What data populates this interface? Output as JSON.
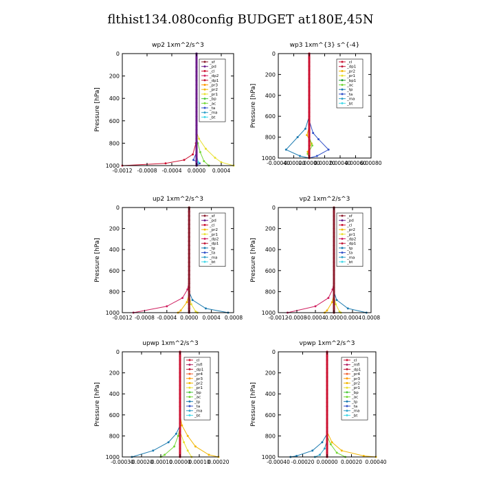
{
  "title": "flthist134.080config  BUDGET at180E,45N",
  "colors": {
    "_sf": "#8b1a2b",
    "_pd": "#6a1a8a",
    "_cl": "#cc1030",
    "_dp2": "#d02060",
    "_dp1": "#c01838",
    "_pr3": "#ff9a00",
    "_pr2": "#f2b600",
    "_pr1": "#e8e030",
    "_bp": "#4cc83a",
    "_bp1": "#1e9c30",
    "_ac": "#74d838",
    "_tp": "#1a7ab0",
    "_ta": "#3050c8",
    "_ma": "#30a0c8",
    "_bt": "#40d8e8",
    "_mfl": "#b02060",
    "_pr4": "#f06030"
  },
  "chart_data": [
    {
      "type": "line",
      "title": "wp2   1xm^2/s^3",
      "ylabel": "Pressure [hPa]",
      "xlim": [
        -0.0012,
        0.0006
      ],
      "ylim": [
        1000,
        0
      ],
      "xticks": [
        "-0.0012",
        "-0.0008",
        "-0.0004",
        "0.0000",
        "0.0004"
      ],
      "xtick_values": [
        -0.0012,
        -0.0008,
        -0.0004,
        0.0,
        0.0004
      ],
      "yticks": [
        0,
        200,
        400,
        600,
        800,
        1000
      ],
      "legend": [
        "_sf",
        "_pd",
        "_cl",
        "_dp2",
        "_dp1",
        "_pr3",
        "_pr2",
        "_pr1",
        "_bp",
        "_ac",
        "_ta",
        "_ma",
        "_bt"
      ],
      "legend_position": "top-right",
      "series": [
        {
          "name": "_cl",
          "points": [
            [
              0,
              0
            ],
            [
              0,
              600
            ],
            [
              -1e-05,
              800
            ],
            [
              -6e-05,
              900
            ],
            [
              -0.0002,
              950
            ],
            [
              -0.0005,
              980
            ],
            [
              -0.0012,
              1000
            ]
          ]
        },
        {
          "name": "_pr1",
          "points": [
            [
              0,
              0
            ],
            [
              0,
              700
            ],
            [
              4e-05,
              760
            ],
            [
              0.00015,
              850
            ],
            [
              0.0003,
              930
            ],
            [
              0.0004,
              970
            ],
            [
              0.0006,
              1000
            ]
          ]
        },
        {
          "name": "_ac",
          "points": [
            [
              0,
              0
            ],
            [
              0,
              740
            ],
            [
              2e-05,
              800
            ],
            [
              6e-05,
              880
            ],
            [
              0.00012,
              960
            ],
            [
              0.0002,
              1000
            ]
          ]
        },
        {
          "name": "_ta",
          "points": [
            [
              0,
              0
            ],
            [
              0,
              880
            ],
            [
              -5e-05,
              950
            ],
            [
              5e-05,
              980
            ],
            [
              0,
              1000
            ]
          ]
        },
        {
          "name": "_bt",
          "points": [
            [
              0,
              0
            ],
            [
              0,
              900
            ],
            [
              3e-05,
              970
            ],
            [
              0,
              1000
            ]
          ]
        },
        {
          "name": "_pd",
          "points": [
            [
              0,
              0
            ],
            [
              0,
              1000
            ]
          ]
        }
      ]
    },
    {
      "type": "line",
      "title": "wp3   1xm^{3} s^{-4}",
      "ylabel": "Pressure [hPa]",
      "xlim": [
        -0.0004,
        0.0008
      ],
      "ylim": [
        1000,
        0
      ],
      "xticks": [
        "-0.00040",
        "-0.00020",
        "0.00000",
        "0.00020",
        "0.00040",
        "0.00060",
        "0.00080"
      ],
      "xtick_values": [
        -0.0004,
        -0.0002,
        0.0,
        0.0002,
        0.0004,
        0.0006,
        0.0008
      ],
      "yticks": [
        0,
        200,
        400,
        600,
        800,
        1000
      ],
      "legend": [
        "_cl",
        "_dp1",
        "_pr2",
        "_pr1",
        "_bp1",
        "_ac",
        "_tp",
        "_ta",
        "_ma",
        "_bt"
      ],
      "legend_position": "top-right",
      "series": [
        {
          "name": "_tp",
          "points": [
            [
              0,
              0
            ],
            [
              0,
              600
            ],
            [
              -5e-05,
              720
            ],
            [
              -0.00015,
              800
            ],
            [
              -0.0003,
              920
            ],
            [
              -0.00012,
              980
            ],
            [
              0,
              1000
            ]
          ]
        },
        {
          "name": "_ta",
          "points": [
            [
              0,
              0
            ],
            [
              0,
              640
            ],
            [
              5e-05,
              760
            ],
            [
              0.00012,
              820
            ],
            [
              0.00025,
              920
            ],
            [
              0.0001,
              980
            ],
            [
              0,
              1000
            ]
          ]
        },
        {
          "name": "_pr2",
          "points": [
            [
              0,
              0
            ],
            [
              0,
              700
            ],
            [
              -3e-05,
              780
            ],
            [
              3e-05,
              860
            ],
            [
              -2e-05,
              940
            ],
            [
              0,
              1000
            ]
          ]
        },
        {
          "name": "_ac",
          "points": [
            [
              0,
              0
            ],
            [
              0,
              800
            ],
            [
              4e-05,
              880
            ],
            [
              -2e-05,
              960
            ],
            [
              0,
              1000
            ]
          ]
        },
        {
          "name": "_cl",
          "points": [
            [
              0,
              0
            ],
            [
              0,
              1000
            ]
          ]
        }
      ]
    },
    {
      "type": "line",
      "title": "up2   1xm^2/s^3",
      "ylabel": "Pressure [hPa]",
      "xlim": [
        -0.0012,
        0.0008
      ],
      "ylim": [
        1000,
        0
      ],
      "xticks": [
        "-0.0012",
        "-0.0008",
        "-0.0004",
        "0.0000",
        "0.0004",
        "0.0008"
      ],
      "xtick_values": [
        -0.0012,
        -0.0008,
        -0.0004,
        0.0,
        0.0004,
        0.0008
      ],
      "yticks": [
        0,
        200,
        400,
        600,
        800,
        1000
      ],
      "legend": [
        "_sf",
        "_pd",
        "_cl",
        "_pr2",
        "_pr1",
        "_dp2",
        "_dp1",
        "_tp",
        "_ta",
        "_ma",
        "_bt"
      ],
      "legend_position": "top-right",
      "series": [
        {
          "name": "_dp2",
          "points": [
            [
              0,
              0
            ],
            [
              0,
              700
            ],
            [
              -3e-05,
              780
            ],
            [
              -0.00012,
              860
            ],
            [
              -0.0004,
              940
            ],
            [
              -0.001,
              1000
            ]
          ]
        },
        {
          "name": "_tp",
          "points": [
            [
              0,
              0
            ],
            [
              0,
              800
            ],
            [
              6e-05,
              880
            ],
            [
              0.0003,
              960
            ],
            [
              0.0007,
              1000
            ]
          ]
        },
        {
          "name": "_pr2",
          "points": [
            [
              0,
              0
            ],
            [
              0,
              820
            ],
            [
              -4e-05,
              900
            ],
            [
              -0.00015,
              980
            ],
            [
              -0.0002,
              1000
            ]
          ]
        },
        {
          "name": "_pr1",
          "points": [
            [
              0,
              0
            ],
            [
              0,
              840
            ],
            [
              4e-05,
              920
            ],
            [
              0.00012,
              990
            ],
            [
              0.00015,
              1000
            ]
          ]
        },
        {
          "name": "_sf",
          "points": [
            [
              0,
              0
            ],
            [
              0,
              1000
            ]
          ]
        }
      ]
    },
    {
      "type": "line",
      "title": "vp2   1xm^2/s^3",
      "ylabel": "Pressure [hPa]",
      "xlim": [
        -0.0012,
        0.0008
      ],
      "ylim": [
        1000,
        0
      ],
      "xticks": [
        "-0.0012",
        "-0.0008",
        "-0.0004",
        "0.0000",
        "0.0004",
        "0.0008"
      ],
      "xtick_values": [
        -0.0012,
        -0.0008,
        -0.0004,
        0.0,
        0.0004,
        0.0008
      ],
      "yticks": [
        0,
        200,
        400,
        600,
        800,
        1000
      ],
      "legend": [
        "_sf",
        "_pd",
        "_cl",
        "_pr2",
        "_pr1",
        "_dp2",
        "_dp1",
        "_tp",
        "_ta",
        "_ma",
        "_bt"
      ],
      "legend_position": "top-right",
      "series": [
        {
          "name": "_dp2",
          "points": [
            [
              0,
              0
            ],
            [
              0,
              700
            ],
            [
              -3e-05,
              780
            ],
            [
              -0.00012,
              860
            ],
            [
              -0.0004,
              940
            ],
            [
              -0.001,
              1000
            ]
          ]
        },
        {
          "name": "_tp",
          "points": [
            [
              0,
              0
            ],
            [
              0,
              800
            ],
            [
              6e-05,
              880
            ],
            [
              0.0003,
              960
            ],
            [
              0.0007,
              1000
            ]
          ]
        },
        {
          "name": "_pr2",
          "points": [
            [
              0,
              0
            ],
            [
              0,
              820
            ],
            [
              -4e-05,
              900
            ],
            [
              -0.00015,
              980
            ],
            [
              -0.0002,
              1000
            ]
          ]
        },
        {
          "name": "_pr1",
          "points": [
            [
              0,
              0
            ],
            [
              0,
              840
            ],
            [
              4e-05,
              920
            ],
            [
              0.00012,
              990
            ],
            [
              0.00015,
              1000
            ]
          ]
        },
        {
          "name": "_sf",
          "points": [
            [
              0,
              0
            ],
            [
              0,
              1000
            ]
          ]
        }
      ]
    },
    {
      "type": "line",
      "title": "upwp   1xm^2/s^3",
      "ylabel": "Pressure [hPa]",
      "xlim": [
        -0.0003,
        0.0002
      ],
      "ylim": [
        1000,
        0
      ],
      "xticks": [
        "-0.00030",
        "-0.00020",
        "-0.00010",
        "0.00000",
        "0.00010",
        "0.00020"
      ],
      "xtick_values": [
        -0.0003,
        -0.0002,
        -0.0001,
        0.0,
        0.0001,
        0.0002
      ],
      "yticks": [
        0,
        200,
        400,
        600,
        800,
        1000
      ],
      "legend": [
        "_cl",
        "_mfl",
        "_dp1",
        "_pr4",
        "_pr3",
        "_pr2",
        "_pr1",
        "_bp",
        "_ac",
        "_tp",
        "_ta",
        "_ma",
        "_bt"
      ],
      "legend_position": "top-right",
      "series": [
        {
          "name": "_pr2",
          "points": [
            [
              0,
              0
            ],
            [
              0,
              600
            ],
            [
              1e-05,
              700
            ],
            [
              4e-05,
              800
            ],
            [
              8e-05,
              900
            ],
            [
              0.00015,
              980
            ],
            [
              0.0002,
              1000
            ]
          ]
        },
        {
          "name": "_tp",
          "points": [
            [
              0,
              0
            ],
            [
              0,
              700
            ],
            [
              -2e-05,
              780
            ],
            [
              -6e-05,
              860
            ],
            [
              -0.00014,
              940
            ],
            [
              -0.00025,
              1000
            ]
          ]
        },
        {
          "name": "_ac",
          "points": [
            [
              0,
              0
            ],
            [
              0,
              720
            ],
            [
              -1e-05,
              800
            ],
            [
              -3e-05,
              900
            ],
            [
              -8e-05,
              980
            ],
            [
              -0.0001,
              1000
            ]
          ]
        },
        {
          "name": "_pr1",
          "points": [
            [
              0,
              0
            ],
            [
              0,
              760
            ],
            [
              2e-05,
              860
            ],
            [
              4e-05,
              940
            ],
            [
              6e-05,
              1000
            ]
          ]
        },
        {
          "name": "_cl",
          "points": [
            [
              0,
              0
            ],
            [
              0,
              1000
            ]
          ]
        }
      ]
    },
    {
      "type": "line",
      "title": "vpwp   1xm^2/s^3",
      "ylabel": "Pressure [hPa]",
      "xlim": [
        -0.0004,
        0.0004
      ],
      "ylim": [
        1000,
        0
      ],
      "xticks": [
        "-0.00040",
        "-0.00020",
        "0.00000",
        "0.00020",
        "0.00040"
      ],
      "xtick_values": [
        -0.0004,
        -0.0002,
        0.0,
        0.0002,
        0.0004
      ],
      "yticks": [
        0,
        200,
        400,
        600,
        800,
        1000
      ],
      "legend": [
        "_cl",
        "_mfl",
        "_dp1",
        "_pr4",
        "_pr3",
        "_pr2",
        "_pr1",
        "_bp",
        "_ac",
        "_tp",
        "_ta",
        "_ma",
        "_bt"
      ],
      "legend_position": "top-right",
      "series": [
        {
          "name": "_pr2",
          "points": [
            [
              0,
              0
            ],
            [
              0,
              760
            ],
            [
              4e-05,
              860
            ],
            [
              0.00012,
              940
            ],
            [
              0.0003,
              990
            ],
            [
              0.0004,
              1000
            ]
          ]
        },
        {
          "name": "_tp",
          "points": [
            [
              0,
              0
            ],
            [
              0,
              780
            ],
            [
              -4e-05,
              860
            ],
            [
              -0.00012,
              940
            ],
            [
              -0.00025,
              990
            ],
            [
              -0.0003,
              1000
            ]
          ]
        },
        {
          "name": "_ac",
          "points": [
            [
              0,
              0
            ],
            [
              0,
              800
            ],
            [
              3e-05,
              880
            ],
            [
              8e-05,
              960
            ],
            [
              0.00015,
              1000
            ]
          ]
        },
        {
          "name": "_ma",
          "points": [
            [
              0,
              0
            ],
            [
              0,
              840
            ],
            [
              -2e-05,
              920
            ],
            [
              -6e-05,
              980
            ],
            [
              -0.0001,
              1000
            ]
          ]
        },
        {
          "name": "_cl",
          "points": [
            [
              0,
              0
            ],
            [
              0,
              1000
            ]
          ]
        }
      ]
    }
  ]
}
